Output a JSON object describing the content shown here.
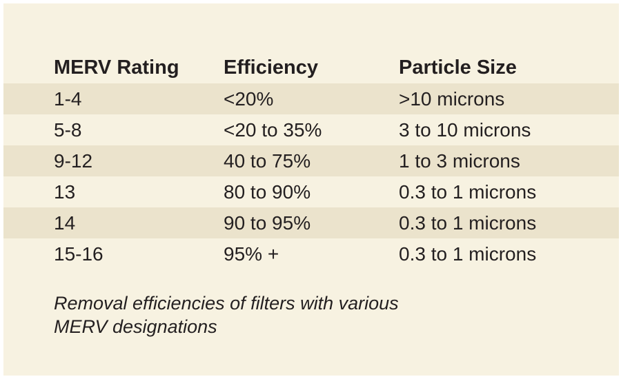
{
  "table": {
    "headers": [
      "MERV Rating",
      "Efficiency",
      "Particle Size"
    ],
    "rows": [
      [
        "1-4",
        "<20%",
        ">10 microns"
      ],
      [
        "5-8",
        "<20 to 35%",
        "3 to 10 microns"
      ],
      [
        "9-12",
        "40 to 75%",
        "1 to 3 microns"
      ],
      [
        "13",
        "80 to 90%",
        "0.3 to 1 microns"
      ],
      [
        "14",
        "90 to 95%",
        "0.3 to 1 microns"
      ],
      [
        "15-16",
        "95% +",
        "0.3 to 1 microns"
      ]
    ]
  },
  "caption": {
    "line1": "Removal efficiencies of filters with various",
    "line2": "MERV designations"
  },
  "colors": {
    "background": "#f7f2e1",
    "row_shade": "#ebe3cc",
    "text": "#231f20"
  }
}
